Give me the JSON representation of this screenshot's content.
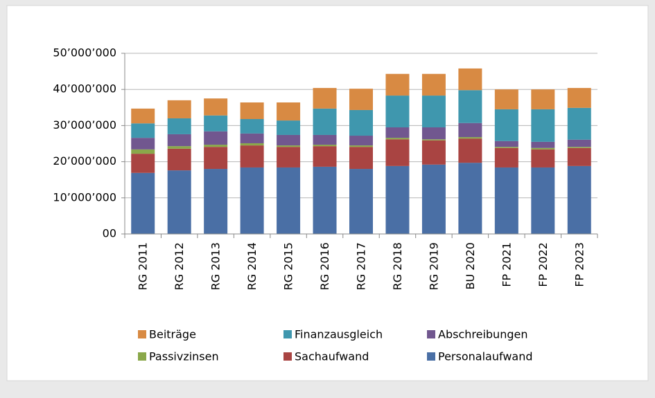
{
  "chart_data": {
    "type": "stacked_bar",
    "categories": [
      "RG 2011",
      "RG 2012",
      "RG 2013",
      "RG 2014",
      "RG 2015",
      "RG 2016",
      "RG 2017",
      "RG 2018",
      "RG 2019",
      "BU 2020",
      "FP 2021",
      "FP 2022",
      "FP 2023"
    ],
    "series": [
      {
        "name": "Personalaufwand",
        "color": "#4a6fa5",
        "values": [
          16900000,
          17600000,
          18000000,
          18400000,
          18400000,
          18600000,
          18000000,
          18800000,
          19200000,
          19700000,
          18400000,
          18400000,
          18800000
        ]
      },
      {
        "name": "Sachaufwand",
        "color": "#a94442",
        "values": [
          5300000,
          6000000,
          6100000,
          6100000,
          5700000,
          5700000,
          6100000,
          7400000,
          6700000,
          6700000,
          5400000,
          5000000,
          5000000
        ]
      },
      {
        "name": "Passivzinsen",
        "color": "#8aa84a",
        "values": [
          1200000,
          700000,
          600000,
          600000,
          400000,
          400000,
          400000,
          400000,
          300000,
          400000,
          300000,
          400000,
          300000
        ]
      },
      {
        "name": "Abschreibungen",
        "color": "#71578f",
        "values": [
          3200000,
          3300000,
          3700000,
          2700000,
          2900000,
          2700000,
          2700000,
          2900000,
          3300000,
          3900000,
          1600000,
          1700000,
          2000000
        ]
      },
      {
        "name": "Finanzausgleich",
        "color": "#3f97ae",
        "values": [
          4000000,
          4400000,
          4400000,
          4000000,
          4000000,
          7300000,
          7100000,
          8800000,
          8800000,
          9100000,
          8800000,
          9000000,
          8800000
        ]
      },
      {
        "name": "Beiträge",
        "color": "#d88a43",
        "values": [
          4100000,
          5000000,
          4700000,
          4600000,
          5000000,
          5700000,
          5900000,
          6000000,
          6000000,
          6000000,
          5500000,
          5500000,
          5500000
        ]
      }
    ],
    "ylim": [
      0,
      50000000
    ],
    "yticks": [
      {
        "value": 0,
        "label": "00"
      },
      {
        "value": 10000000,
        "label": "10’000’000"
      },
      {
        "value": 20000000,
        "label": "20’000’000"
      },
      {
        "value": 30000000,
        "label": "30’000’000"
      },
      {
        "value": 40000000,
        "label": "40’000’000"
      },
      {
        "value": 50000000,
        "label": "50’000’000"
      }
    ],
    "grid": true
  }
}
